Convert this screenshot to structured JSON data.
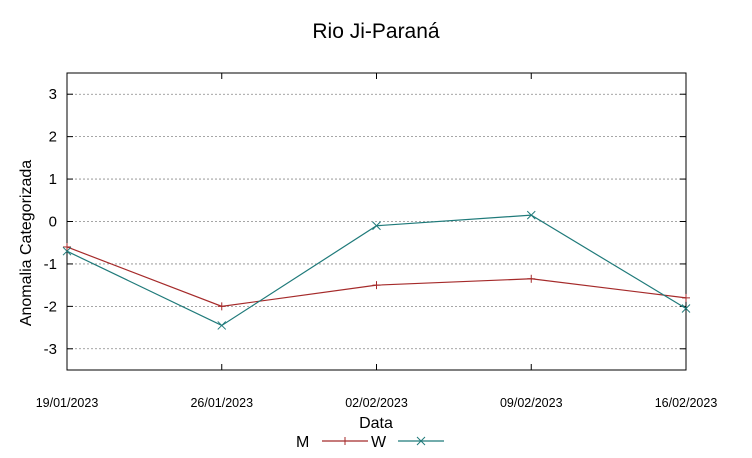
{
  "chart_data": {
    "type": "line",
    "title": "Rio Ji-Paraná",
    "xlabel": "Data",
    "ylabel": "Anomalia Categorizada",
    "categories": [
      "19/01/2023",
      "26/01/2023",
      "02/02/2023",
      "09/02/2023",
      "16/02/2023"
    ],
    "ylim": [
      -3.5,
      3.5
    ],
    "yticks": [
      -3,
      -2,
      -1,
      0,
      1,
      2,
      3
    ],
    "grid": true,
    "legend_position": "bottom-center",
    "series": [
      {
        "name": "M",
        "values": [
          -0.6,
          -2.0,
          -1.5,
          -1.35,
          -1.8
        ],
        "color": "#a52a2a",
        "marker": "plus"
      },
      {
        "name": "W",
        "values": [
          -0.7,
          -2.45,
          -0.1,
          0.15,
          -2.05
        ],
        "color": "#1f7a7a",
        "marker": "cross"
      }
    ]
  }
}
